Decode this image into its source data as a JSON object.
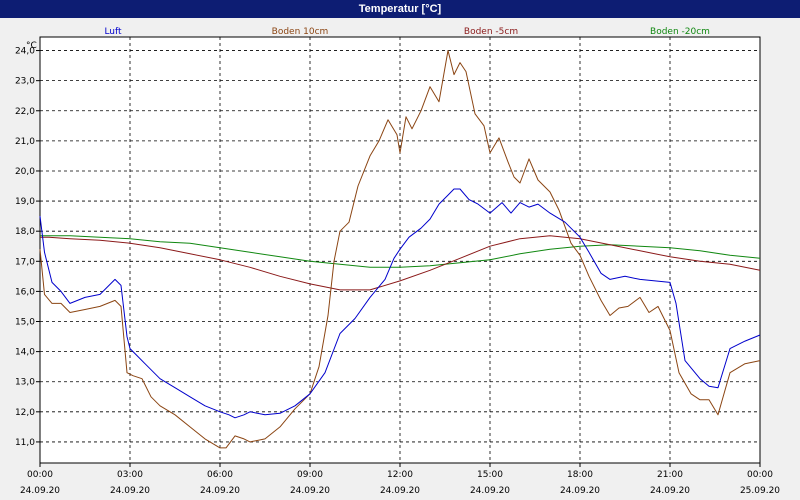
{
  "window": {
    "title": "Temperatur [°C]"
  },
  "chart_data": {
    "type": "line",
    "ylabel": "°C",
    "ylim": [
      10.3,
      24.45
    ],
    "xlim": [
      0,
      24
    ],
    "grid": true,
    "legend_position": "top",
    "y_ticks": [
      "24,0",
      "23,0",
      "22,0",
      "21,0",
      "20,0",
      "19,0",
      "18,0",
      "17,0",
      "16,0",
      "15,0",
      "14,0",
      "13,0",
      "12,0",
      "11,0"
    ],
    "y_tick_values": [
      24,
      23,
      22,
      21,
      20,
      19,
      18,
      17,
      16,
      15,
      14,
      13,
      12,
      11
    ],
    "x_ticks": [
      {
        "time": "00:00",
        "date": "24.09.20"
      },
      {
        "time": "03:00",
        "date": "24.09.20"
      },
      {
        "time": "06:00",
        "date": "24.09.20"
      },
      {
        "time": "09:00",
        "date": "24.09.20"
      },
      {
        "time": "12:00",
        "date": "24.09.20"
      },
      {
        "time": "15:00",
        "date": "24.09.20"
      },
      {
        "time": "18:00",
        "date": "24.09.20"
      },
      {
        "time": "21:00",
        "date": "24.09.20"
      },
      {
        "time": "00:00",
        "date": "25.09.20"
      }
    ],
    "x_tick_hours": [
      0,
      3,
      6,
      9,
      12,
      15,
      18,
      21,
      24
    ],
    "series": [
      {
        "name": "Luft",
        "color": "#0000cc",
        "x": [
          0,
          0.15,
          0.4,
          0.7,
          1,
          1.5,
          2,
          2.5,
          2.7,
          2.9,
          3,
          3.2,
          3.5,
          4,
          4.5,
          5,
          5.5,
          6,
          6.3,
          6.5,
          6.8,
          7,
          7.5,
          8,
          8.5,
          9,
          9.5,
          10,
          10.5,
          11,
          11.5,
          11.8,
          12,
          12.3,
          12.7,
          13,
          13.3,
          13.6,
          13.8,
          14,
          14.3,
          14.6,
          15,
          15.4,
          15.7,
          16,
          16.3,
          16.6,
          17,
          17.5,
          18,
          18.3,
          18.7,
          19,
          19.5,
          20,
          20.5,
          21,
          21.2,
          21.5,
          22,
          22.3,
          22.6,
          23,
          23.5,
          24
        ],
        "y": [
          18.5,
          17.3,
          16.3,
          16,
          15.6,
          15.8,
          15.9,
          16.4,
          16.2,
          14.5,
          14.1,
          13.9,
          13.6,
          13.1,
          12.8,
          12.5,
          12.2,
          12,
          11.9,
          11.8,
          11.9,
          12,
          11.9,
          11.95,
          12.2,
          12.6,
          13.3,
          14.6,
          15.1,
          15.8,
          16.4,
          17.1,
          17.4,
          17.8,
          18.1,
          18.4,
          18.9,
          19.2,
          19.4,
          19.4,
          19.05,
          18.9,
          18.6,
          18.95,
          18.6,
          18.95,
          18.8,
          18.9,
          18.6,
          18.3,
          17.8,
          17.3,
          16.6,
          16.4,
          16.5,
          16.4,
          16.35,
          16.3,
          15.6,
          13.7,
          13.1,
          12.85,
          12.8,
          14.1,
          14.35,
          14.55
        ]
      },
      {
        "name": "Boden 10cm",
        "color": "#8b4513",
        "x": [
          0,
          0.15,
          0.4,
          0.7,
          1,
          1.5,
          2,
          2.5,
          2.7,
          2.9,
          3.1,
          3.4,
          3.7,
          4,
          4.5,
          5,
          5.5,
          6,
          6.2,
          6.5,
          6.8,
          7,
          7.5,
          8,
          8.5,
          9,
          9.3,
          9.6,
          9.8,
          10,
          10.3,
          10.6,
          11,
          11.3,
          11.6,
          11.9,
          12,
          12.2,
          12.4,
          12.7,
          13,
          13.3,
          13.6,
          13.8,
          14,
          14.2,
          14.5,
          14.8,
          15,
          15.3,
          15.6,
          15.8,
          16,
          16.3,
          16.6,
          17,
          17.3,
          17.7,
          18,
          18.3,
          18.7,
          19,
          19.3,
          19.6,
          20,
          20.3,
          20.6,
          21,
          21.3,
          21.7,
          22,
          22.3,
          22.6,
          23,
          23.5,
          24
        ],
        "y": [
          17.4,
          15.9,
          15.6,
          15.6,
          15.3,
          15.4,
          15.5,
          15.7,
          15.5,
          13.3,
          13.2,
          13.1,
          12.5,
          12.2,
          11.9,
          11.5,
          11.1,
          10.8,
          10.8,
          11.2,
          11.1,
          11,
          11.1,
          11.5,
          12.1,
          12.6,
          13.5,
          15.2,
          17,
          18,
          18.3,
          19.5,
          20.5,
          21,
          21.7,
          21.2,
          20.6,
          21.8,
          21.4,
          22,
          22.8,
          22.3,
          24,
          23.2,
          23.6,
          23.3,
          21.9,
          21.5,
          20.6,
          21.1,
          20.3,
          19.8,
          19.6,
          20.4,
          19.7,
          19.3,
          18.7,
          17.6,
          17.2,
          16.5,
          15.7,
          15.2,
          15.45,
          15.5,
          15.8,
          15.3,
          15.5,
          14.7,
          13.3,
          12.6,
          12.4,
          12.4,
          11.9,
          13.3,
          13.6,
          13.7
        ]
      },
      {
        "name": "Boden -5cm",
        "color": "#8b1a1a",
        "x": [
          0,
          0.3,
          1,
          2,
          3,
          4,
          5,
          6,
          7,
          8,
          9,
          10,
          11,
          12,
          13,
          14,
          15,
          16,
          17,
          18,
          19,
          20,
          21,
          22,
          23,
          24
        ],
        "y": [
          17.8,
          17.8,
          17.75,
          17.7,
          17.6,
          17.45,
          17.25,
          17.05,
          16.8,
          16.5,
          16.25,
          16.05,
          16.05,
          16.35,
          16.7,
          17.1,
          17.5,
          17.75,
          17.85,
          17.75,
          17.55,
          17.35,
          17.15,
          17.0,
          16.9,
          16.7
        ]
      },
      {
        "name": "Boden -20cm",
        "color": "#118811",
        "x": [
          0,
          1,
          2,
          3,
          4,
          5,
          6,
          7,
          8,
          9,
          10,
          11,
          12,
          13,
          14,
          15,
          16,
          17,
          18,
          19,
          20,
          21,
          22,
          23,
          24
        ],
        "y": [
          17.85,
          17.85,
          17.8,
          17.75,
          17.65,
          17.6,
          17.45,
          17.3,
          17.15,
          17.0,
          16.9,
          16.8,
          16.8,
          16.85,
          16.95,
          17.05,
          17.25,
          17.4,
          17.5,
          17.55,
          17.5,
          17.45,
          17.35,
          17.2,
          17.1
        ]
      }
    ]
  }
}
